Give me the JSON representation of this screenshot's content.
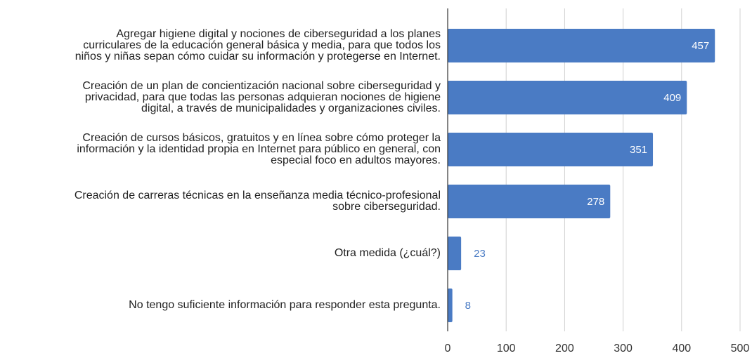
{
  "chart_data": {
    "type": "bar",
    "orientation": "horizontal",
    "categories": [
      [
        "Agregar higiene digital y nociones de ciberseguridad a los planes",
        "curriculares de la educación general básica y media, para que todos los",
        "niños y niñas sepan cómo cuidar su información y protegerse en Internet."
      ],
      [
        "Creación de un plan de concientización nacional sobre ciberseguridad y",
        "privacidad, para que todas las personas adquieran nociones de higiene",
        "digital, a través de municipalidades y organizaciones civiles."
      ],
      [
        "Creación de cursos básicos, gratuitos y en línea sobre cómo proteger la",
        "información y la identidad propia en Internet para público en general, con",
        "especial foco en adultos mayores."
      ],
      [
        "Creación de carreras técnicas en la enseñanza media técnico-profesional",
        "sobre ciberseguridad."
      ],
      [
        "Otra medida (¿cuál?)"
      ],
      [
        "No tengo suficiente información para responder esta pregunta."
      ]
    ],
    "values": [
      457,
      409,
      351,
      278,
      23,
      8
    ],
    "color": "#4a7bc4",
    "xlim": [
      0,
      500
    ],
    "xticks": [
      0,
      100,
      200,
      300,
      400,
      500
    ],
    "grid": true
  }
}
